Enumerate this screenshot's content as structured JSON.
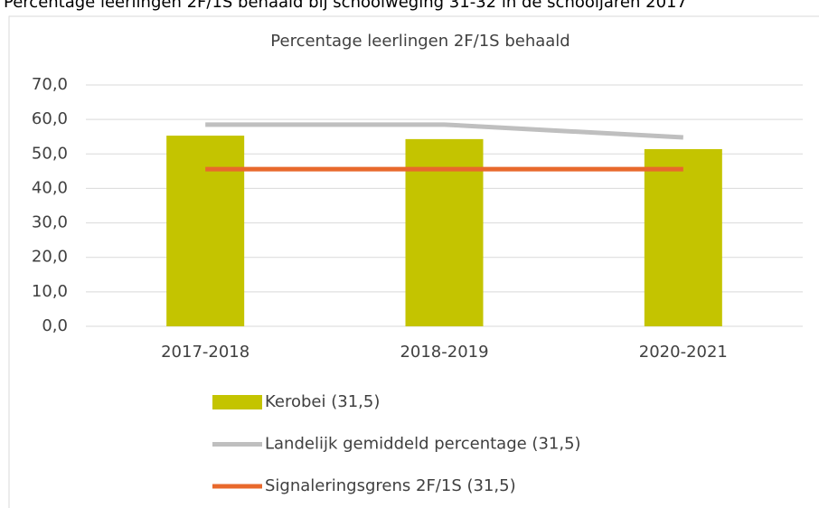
{
  "caption": "Percentage leerlingen 2F/1S behaald bij schoolweging 31-32 in de schooljaren 2017",
  "chart_data": {
    "type": "bar",
    "title": "Percentage leerlingen 2F/1S behaald",
    "categories": [
      "2017-2018",
      "2018-2019",
      "2020-2021"
    ],
    "series": [
      {
        "name": "Kerobei (31,5)",
        "type": "bar",
        "color": "#c4c400",
        "values": [
          55.3,
          54.3,
          51.4
        ]
      },
      {
        "name": "Landelijk gemiddeld percentage (31,5)",
        "type": "line",
        "color": "#bfbfbf",
        "values": [
          58.5,
          58.5,
          54.8
        ]
      },
      {
        "name": "Signaleringsgrens 2F/1S (31,5)",
        "type": "line",
        "color": "#e8692c",
        "values": [
          45.6,
          45.6,
          45.6
        ]
      }
    ],
    "ylim": [
      0,
      70
    ],
    "yticks": [
      {
        "value": 0,
        "label": "0,0"
      },
      {
        "value": 10,
        "label": "10,0"
      },
      {
        "value": 20,
        "label": "20,0"
      },
      {
        "value": 30,
        "label": "30,0"
      },
      {
        "value": 40,
        "label": "40,0"
      },
      {
        "value": 50,
        "label": "50,0"
      },
      {
        "value": 60,
        "label": "60,0"
      },
      {
        "value": 70,
        "label": "70,0"
      }
    ],
    "grid": true,
    "legend": "bottom"
  }
}
